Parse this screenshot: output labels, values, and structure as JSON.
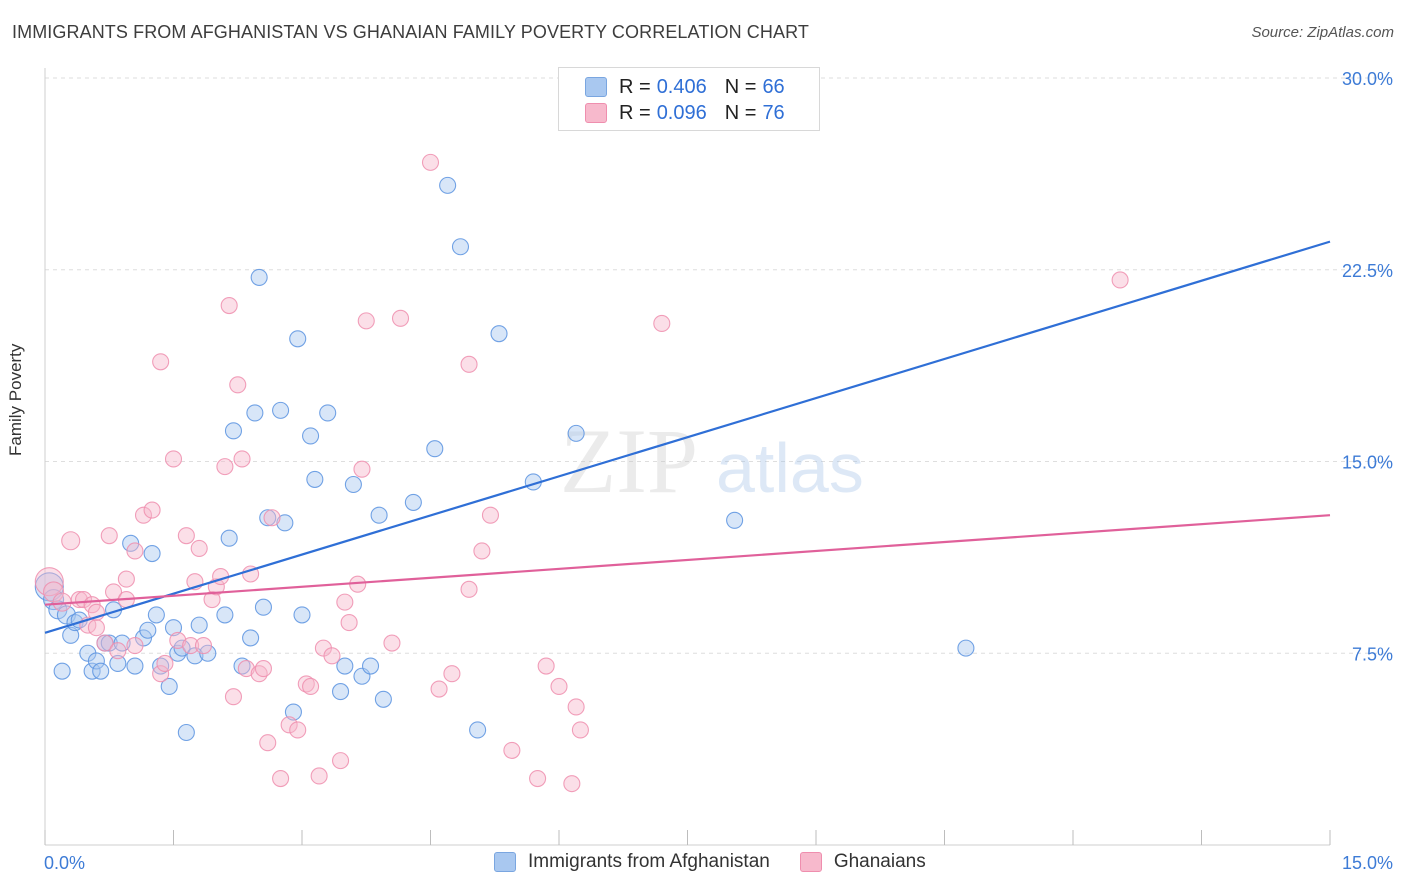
{
  "title": "IMMIGRANTS FROM AFGHANISTAN VS GHANAIAN FAMILY POVERTY CORRELATION CHART",
  "source": "Source: ZipAtlas.com",
  "watermark": {
    "zip": "ZIP",
    "atlas": "atlas"
  },
  "legend": {
    "rows": [
      {
        "r_label": "R =",
        "r_value": "0.406",
        "n_label": "N =",
        "n_value": "66",
        "color": "#a9c8f0"
      },
      {
        "r_label": "R =",
        "r_value": "0.096",
        "n_label": "N =",
        "n_value": "76",
        "color": "#f7b9cc"
      }
    ]
  },
  "bottom_legend": [
    {
      "label": "Immigrants from Afghanistan",
      "color": "#a9c8f0"
    },
    {
      "label": "Ghanaians",
      "color": "#f7b9cc"
    }
  ],
  "chart_data": {
    "type": "scatter",
    "xlabel": "",
    "ylabel": "Family Poverty",
    "xlim": [
      0,
      15
    ],
    "ylim": [
      0,
      30
    ],
    "x_tick_labels": [
      {
        "value": 0,
        "label": "0.0%"
      },
      {
        "value": 15,
        "label": "15.0%"
      }
    ],
    "y_tick_labels": [
      {
        "value": 7.5,
        "label": "7.5%"
      },
      {
        "value": 15,
        "label": "15.0%"
      },
      {
        "value": 22.5,
        "label": "22.5%"
      },
      {
        "value": 30,
        "label": "30.0%"
      }
    ],
    "x_minor_ticks": [
      0,
      1.5,
      3,
      4.5,
      6,
      7.5,
      9,
      10.5,
      12,
      13.5,
      15
    ],
    "grid": true,
    "legend_position": "top-center",
    "series": [
      {
        "name": "Immigrants from Afghanistan",
        "color": "#5b93e0",
        "fill": "#a9c8f0",
        "trend": {
          "x": [
            0,
            15
          ],
          "y": [
            8.3,
            23.6
          ],
          "color": "#2f6fd6"
        },
        "points": [
          [
            0.05,
            10.1,
            14
          ],
          [
            0.1,
            9.6,
            10
          ],
          [
            0.15,
            9.2,
            9
          ],
          [
            0.2,
            6.8,
            8
          ],
          [
            0.25,
            9.0,
            9
          ],
          [
            0.3,
            8.2,
            8
          ],
          [
            0.35,
            8.7,
            8
          ],
          [
            0.4,
            8.8,
            8
          ],
          [
            0.5,
            7.5,
            8
          ],
          [
            0.55,
            6.8,
            8
          ],
          [
            0.6,
            7.2,
            8
          ],
          [
            0.65,
            6.8,
            8
          ],
          [
            0.7,
            7.9,
            8
          ],
          [
            0.75,
            7.9,
            8
          ],
          [
            0.8,
            9.2,
            8
          ],
          [
            0.85,
            7.1,
            8
          ],
          [
            0.9,
            7.9,
            8
          ],
          [
            1.0,
            11.8,
            8
          ],
          [
            1.05,
            7.0,
            8
          ],
          [
            1.15,
            8.1,
            8
          ],
          [
            1.2,
            8.4,
            8
          ],
          [
            1.25,
            11.4,
            8
          ],
          [
            1.3,
            9.0,
            8
          ],
          [
            1.35,
            7.0,
            8
          ],
          [
            1.45,
            6.2,
            8
          ],
          [
            1.5,
            8.5,
            8
          ],
          [
            1.55,
            7.5,
            8
          ],
          [
            1.6,
            7.7,
            8
          ],
          [
            1.65,
            4.4,
            8
          ],
          [
            1.75,
            7.4,
            8
          ],
          [
            1.8,
            8.6,
            8
          ],
          [
            1.9,
            7.5,
            8
          ],
          [
            2.1,
            9.0,
            8
          ],
          [
            2.15,
            12.0,
            8
          ],
          [
            2.2,
            16.2,
            8
          ],
          [
            2.3,
            7.0,
            8
          ],
          [
            2.4,
            8.1,
            8
          ],
          [
            2.45,
            16.9,
            8
          ],
          [
            2.5,
            22.2,
            8
          ],
          [
            2.55,
            9.3,
            8
          ],
          [
            2.6,
            12.8,
            8
          ],
          [
            2.75,
            17.0,
            8
          ],
          [
            2.8,
            12.6,
            8
          ],
          [
            2.9,
            5.2,
            8
          ],
          [
            2.95,
            19.8,
            8
          ],
          [
            3.0,
            9.0,
            8
          ],
          [
            3.1,
            16.0,
            8
          ],
          [
            3.15,
            14.3,
            8
          ],
          [
            3.3,
            16.9,
            8
          ],
          [
            3.45,
            6.0,
            8
          ],
          [
            3.5,
            7.0,
            8
          ],
          [
            3.6,
            14.1,
            8
          ],
          [
            3.7,
            6.6,
            8
          ],
          [
            3.8,
            7.0,
            8
          ],
          [
            3.9,
            12.9,
            8
          ],
          [
            3.95,
            5.7,
            8
          ],
          [
            4.3,
            13.4,
            8
          ],
          [
            4.55,
            15.5,
            8
          ],
          [
            4.7,
            25.8,
            8
          ],
          [
            4.85,
            23.4,
            8
          ],
          [
            5.05,
            4.5,
            8
          ],
          [
            5.3,
            20.0,
            8
          ],
          [
            5.7,
            14.2,
            8
          ],
          [
            6.2,
            16.1,
            8
          ],
          [
            8.05,
            12.7,
            8
          ],
          [
            10.75,
            7.7,
            8
          ]
        ]
      },
      {
        "name": "Ghanaians",
        "color": "#ef8eae",
        "fill": "#f7b9cc",
        "trend": {
          "x": [
            0,
            15
          ],
          "y": [
            9.4,
            12.9
          ],
          "color": "#e0609a"
        },
        "points": [
          [
            0.05,
            10.3,
            14
          ],
          [
            0.1,
            9.9,
            10
          ],
          [
            0.2,
            9.5,
            9
          ],
          [
            0.3,
            11.9,
            9
          ],
          [
            0.4,
            9.6,
            8
          ],
          [
            0.45,
            9.6,
            8
          ],
          [
            0.5,
            8.6,
            8
          ],
          [
            0.55,
            9.4,
            8
          ],
          [
            0.6,
            8.5,
            8
          ],
          [
            0.7,
            7.9,
            8
          ],
          [
            0.75,
            12.1,
            8
          ],
          [
            0.8,
            9.9,
            8
          ],
          [
            0.85,
            7.6,
            8
          ],
          [
            0.95,
            9.6,
            8
          ],
          [
            0.95,
            10.4,
            8
          ],
          [
            1.05,
            11.5,
            8
          ],
          [
            1.05,
            7.8,
            8
          ],
          [
            1.15,
            12.9,
            8
          ],
          [
            1.25,
            13.1,
            8
          ],
          [
            1.35,
            18.9,
            8
          ],
          [
            1.35,
            6.7,
            8
          ],
          [
            1.4,
            7.1,
            8
          ],
          [
            1.5,
            15.1,
            8
          ],
          [
            1.55,
            8.0,
            8
          ],
          [
            1.65,
            12.1,
            8
          ],
          [
            1.7,
            7.8,
            8
          ],
          [
            1.75,
            10.3,
            8
          ],
          [
            1.8,
            11.6,
            8
          ],
          [
            1.85,
            7.8,
            8
          ],
          [
            1.95,
            9.6,
            8
          ],
          [
            2.0,
            10.1,
            8
          ],
          [
            2.05,
            10.5,
            8
          ],
          [
            2.1,
            14.8,
            8
          ],
          [
            2.15,
            21.1,
            8
          ],
          [
            2.2,
            5.8,
            8
          ],
          [
            2.25,
            18.0,
            8
          ],
          [
            2.3,
            15.1,
            8
          ],
          [
            2.35,
            6.9,
            8
          ],
          [
            2.4,
            10.6,
            8
          ],
          [
            2.5,
            6.7,
            8
          ],
          [
            2.55,
            6.9,
            8
          ],
          [
            2.6,
            4.0,
            8
          ],
          [
            2.65,
            12.8,
            8
          ],
          [
            2.75,
            2.6,
            8
          ],
          [
            2.85,
            4.7,
            8
          ],
          [
            2.95,
            4.5,
            8
          ],
          [
            3.05,
            6.3,
            8
          ],
          [
            3.1,
            6.2,
            8
          ],
          [
            3.2,
            2.7,
            8
          ],
          [
            3.25,
            7.7,
            8
          ],
          [
            3.35,
            7.4,
            8
          ],
          [
            3.45,
            3.3,
            8
          ],
          [
            3.5,
            9.5,
            8
          ],
          [
            3.55,
            8.7,
            8
          ],
          [
            3.65,
            10.2,
            8
          ],
          [
            3.7,
            14.7,
            8
          ],
          [
            3.75,
            20.5,
            8
          ],
          [
            4.05,
            7.9,
            8
          ],
          [
            4.15,
            20.6,
            8
          ],
          [
            4.5,
            26.7,
            8
          ],
          [
            4.6,
            6.1,
            8
          ],
          [
            4.75,
            6.7,
            8
          ],
          [
            4.95,
            10.0,
            8
          ],
          [
            4.95,
            18.8,
            8
          ],
          [
            5.1,
            11.5,
            8
          ],
          [
            5.2,
            12.9,
            8
          ],
          [
            5.45,
            3.7,
            8
          ],
          [
            5.75,
            2.6,
            8
          ],
          [
            5.85,
            7.0,
            8
          ],
          [
            6.0,
            6.2,
            8
          ],
          [
            6.15,
            2.4,
            8
          ],
          [
            6.2,
            5.4,
            8
          ],
          [
            6.25,
            4.5,
            8
          ],
          [
            7.2,
            20.4,
            8
          ],
          [
            12.55,
            22.1,
            8
          ],
          [
            0.6,
            9.1,
            8
          ]
        ]
      }
    ]
  }
}
